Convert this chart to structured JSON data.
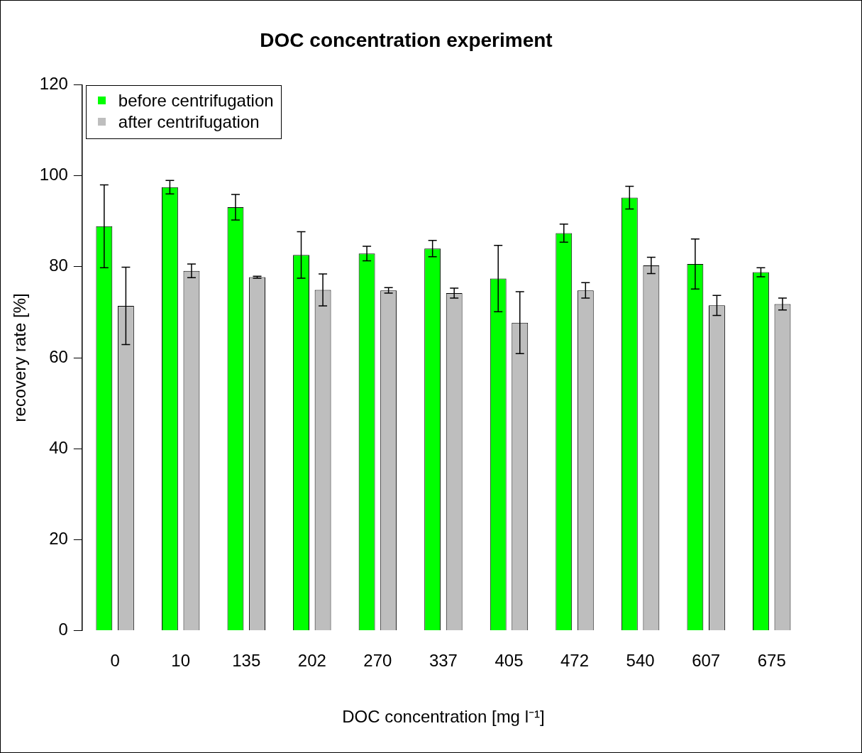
{
  "chart_data": {
    "type": "bar",
    "title": "DOC concentration experiment",
    "xlabel": "DOC concentration [mg l⁻¹]",
    "ylabel": "recovery rate [%]",
    "categories": [
      "0",
      "10",
      "135",
      "202",
      "270",
      "337",
      "405",
      "472",
      "540",
      "607",
      "675"
    ],
    "series": [
      {
        "name": "before centrifugation",
        "color": "#00ff00",
        "values": [
          88.9,
          97.5,
          93.1,
          82.6,
          82.9,
          84.0,
          77.4,
          87.4,
          95.2,
          80.6,
          78.8
        ],
        "errors": [
          9.1,
          1.5,
          2.8,
          5.1,
          1.6,
          1.8,
          7.3,
          2.0,
          2.5,
          5.5,
          1.0
        ]
      },
      {
        "name": "after centrifugation",
        "color": "#bebebe",
        "values": [
          71.4,
          79.1,
          77.7,
          74.9,
          74.8,
          74.2,
          67.7,
          74.8,
          80.3,
          71.5,
          71.8
        ],
        "errors": [
          8.5,
          1.5,
          0.2,
          3.5,
          0.6,
          1.1,
          6.8,
          1.7,
          1.8,
          2.2,
          1.3
        ]
      }
    ],
    "ylim": [
      0,
      120
    ],
    "yticks": [
      0,
      20,
      40,
      60,
      80,
      100,
      120
    ],
    "grid": false,
    "legend": "top left"
  }
}
